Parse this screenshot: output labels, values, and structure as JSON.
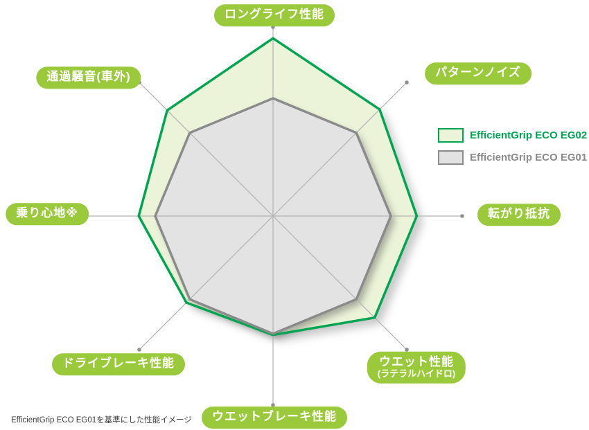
{
  "chart_data": {
    "type": "radar",
    "title": "",
    "categories": [
      "ロングライフ性能",
      "パターンノイズ",
      "転がり抵抗",
      "ウエット性能 (ラテラルハイドロ)",
      "ウエットブレーキ性能",
      "ドライブレーキ性能",
      "乗り心地※",
      "通過騒音(車外)"
    ],
    "baseline_value": 100,
    "series": [
      {
        "name": "EfficientGrip ECO EG02",
        "values": [
          151,
          128,
          122,
          122,
          101,
          104,
          114,
          127
        ],
        "stroke": "#00a551",
        "fill": "#ebf3d9"
      },
      {
        "name": "EfficientGrip ECO EG01",
        "values": [
          100,
          100,
          100,
          100,
          100,
          100,
          100,
          100
        ],
        "stroke": "#8b8b8b",
        "fill": "#e3e3e3"
      }
    ],
    "layout": {
      "center": [
        394,
        312
      ],
      "baseline_radius_px": 170,
      "axis_radius_px": 273,
      "start_angle_deg": -90,
      "grid": false,
      "legend_position": "right"
    }
  },
  "labels": {
    "top": {
      "text": "ロングライフ性能"
    },
    "top_right": {
      "text": "パターンノイズ"
    },
    "right": {
      "text": "転がり抵抗"
    },
    "bottom_right": {
      "text": "ウエット性能",
      "subtext": "(ラテラルハイドロ)"
    },
    "bottom": {
      "text": "ウエットブレーキ性能"
    },
    "bottom_left": {
      "text": "ドライブレーキ性能"
    },
    "left": {
      "text": "乗り心地※"
    },
    "top_left": {
      "text": "通過騒音(車外)"
    }
  },
  "legend": {
    "items": [
      {
        "label": "EfficientGrip ECO EG02",
        "swatch_fill": "#ebf3d9",
        "swatch_border": "#00a551",
        "text_color": "#00a551"
      },
      {
        "label": "EfficientGrip ECO EG01",
        "swatch_fill": "#e2e2e2",
        "swatch_border": "#8b8b8b",
        "text_color": "#8a8a8a"
      }
    ]
  },
  "footnote": {
    "text": "EfficientGrip ECO EG01を基準にした性能イメージ"
  },
  "colors": {
    "pill_background": "#9aca3c",
    "pill_text": "#ffffff",
    "axis_line": "#b3b3b3",
    "axis_dot": "#8f8f8f"
  }
}
